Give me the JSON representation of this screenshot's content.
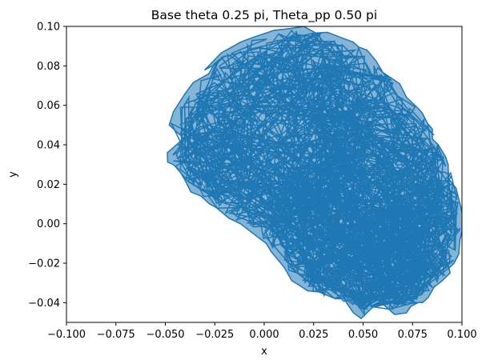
{
  "chart_data": {
    "type": "line",
    "title": "Base theta 0.25 pi, Theta_pp 0.50 pi",
    "xlabel": "x",
    "ylabel": "y",
    "xlim": [
      -0.1,
      0.1
    ],
    "ylim": [
      -0.05,
      0.1
    ],
    "xticks": [
      "−0.100",
      "−0.075",
      "−0.050",
      "−0.025",
      "0.000",
      "0.025",
      "0.050",
      "0.075",
      "0.100"
    ],
    "xtick_values": [
      -0.1,
      -0.075,
      -0.05,
      -0.025,
      0.0,
      0.025,
      0.05,
      0.075,
      0.1
    ],
    "yticks": [
      "−0.04",
      "−0.02",
      "0.00",
      "0.02",
      "0.04",
      "0.06",
      "0.08",
      "0.10"
    ],
    "ytick_values": [
      -0.04,
      -0.02,
      0.0,
      0.02,
      0.04,
      0.06,
      0.08,
      0.1
    ],
    "grid": false,
    "legend": false,
    "series": [
      {
        "color": "#1f77b4",
        "x": [
          -0.048,
          -0.04,
          -0.028,
          -0.02,
          -0.03,
          -0.012,
          0.005,
          0.02,
          0.032,
          0.045,
          0.052,
          0.058,
          0.064,
          0.072,
          0.08,
          0.085,
          0.088,
          0.093,
          0.097,
          0.1,
          0.099,
          0.096,
          0.094,
          0.086,
          0.08,
          0.074,
          0.066,
          0.058,
          0.049,
          0.043,
          0.036,
          0.022,
          0.01,
          0.001,
          -0.012,
          -0.024,
          -0.032,
          -0.04,
          -0.046,
          -0.049,
          -0.04,
          -0.02
        ],
        "y": [
          0.05,
          0.066,
          0.076,
          0.085,
          0.078,
          0.092,
          0.098,
          0.1,
          0.097,
          0.092,
          0.088,
          0.08,
          0.074,
          0.064,
          0.056,
          0.048,
          0.04,
          0.03,
          0.018,
          0.006,
          -0.008,
          -0.02,
          -0.025,
          -0.032,
          -0.04,
          -0.042,
          -0.046,
          -0.04,
          -0.048,
          -0.042,
          -0.038,
          -0.034,
          -0.022,
          -0.01,
          0.0,
          0.008,
          0.014,
          0.022,
          0.03,
          0.036,
          0.044,
          0.024
        ]
      }
    ]
  }
}
